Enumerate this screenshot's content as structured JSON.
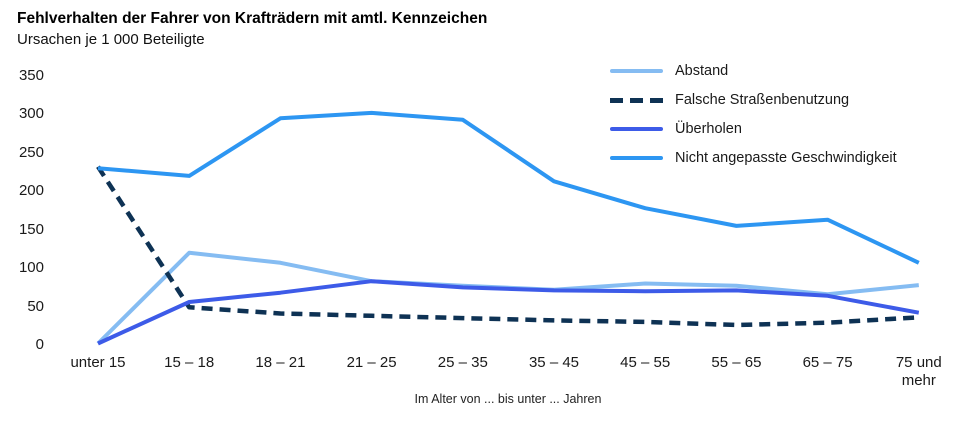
{
  "chart_data": {
    "type": "line",
    "title": "Fehlverhalten der Fahrer von Krafträdern mit amtl. Kennzeichen",
    "subtitle": "Ursachen je 1 000 Beteiligte",
    "xlabel": "Im Alter von ... bis unter ... Jahren",
    "ylabel": "",
    "ylim": [
      0,
      350
    ],
    "yticks": [
      350,
      300,
      250,
      200,
      150,
      100,
      50,
      0
    ],
    "grid": false,
    "legend_position": "top-right",
    "categories": [
      "unter 15",
      "15 – 18",
      "18 – 21",
      "21 – 25",
      "25 – 35",
      "35 – 45",
      "45 – 55",
      "55 – 65",
      "65 – 75",
      "75 und mehr"
    ],
    "series": [
      {
        "name": "Abstand",
        "color": "#85BCF2",
        "style": "solid",
        "values": [
          2,
          120,
          107,
          83,
          77,
          72,
          80,
          77,
          66,
          78
        ]
      },
      {
        "name": "Falsche Straßenbenutzung",
        "color": "#0E3254",
        "style": "dashed",
        "values": [
          232,
          49,
          41,
          38,
          35,
          32,
          30,
          26,
          29,
          36
        ]
      },
      {
        "name": "Überholen",
        "color": "#3D5BE8",
        "style": "solid",
        "values": [
          2,
          56,
          68,
          83,
          75,
          71,
          70,
          71,
          64,
          42
        ]
      },
      {
        "name": "Nicht angepasste Geschwindigkeit",
        "color": "#2D96F2",
        "style": "solid",
        "values": [
          230,
          220,
          295,
          302,
          293,
          213,
          178,
          155,
          163,
          107
        ]
      }
    ]
  }
}
